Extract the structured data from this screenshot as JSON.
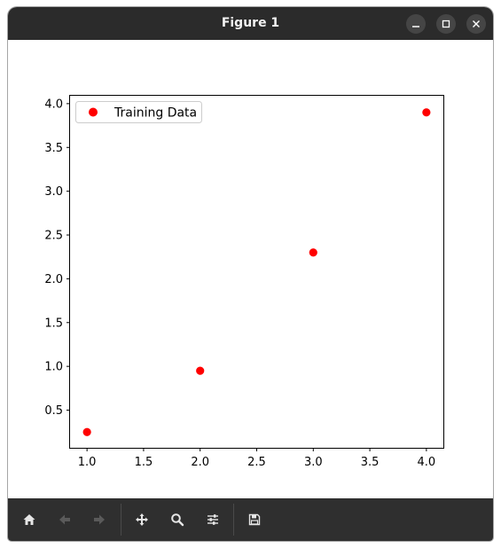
{
  "window": {
    "title": "Figure 1",
    "buttons": [
      "minimize-icon",
      "maximize-icon",
      "close-icon"
    ]
  },
  "toolbar": {
    "icons": [
      "home-icon",
      "back-arrow-icon",
      "forward-arrow-icon",
      "pan-icon",
      "zoom-icon",
      "configure-subplots-icon",
      "save-icon"
    ]
  },
  "colors": {
    "titlebar": "#2b2b2b",
    "toolbar": "#2f2f2f",
    "marker": "#ff0000"
  },
  "chart_data": {
    "type": "scatter",
    "title": "",
    "xlabel": "",
    "ylabel": "",
    "xlim": [
      0.85,
      4.15
    ],
    "ylim": [
      0.07,
      4.09
    ],
    "xticks": [
      1.0,
      1.5,
      2.0,
      2.5,
      3.0,
      3.5,
      4.0
    ],
    "xtick_labels": [
      "1.0",
      "1.5",
      "2.0",
      "2.5",
      "3.0",
      "3.5",
      "4.0"
    ],
    "yticks": [
      0.5,
      1.0,
      1.5,
      2.0,
      2.5,
      3.0,
      3.5,
      4.0
    ],
    "ytick_labels": [
      "0.5",
      "1.0",
      "1.5",
      "2.0",
      "2.5",
      "3.0",
      "3.5",
      "4.0"
    ],
    "grid": false,
    "legend_position": "upper-left",
    "series": [
      {
        "name": "Training Data",
        "color": "#ff0000",
        "marker": "circle",
        "x": [
          1.0,
          2.0,
          3.0,
          4.0
        ],
        "y": [
          0.25,
          0.95,
          2.3,
          3.9
        ]
      }
    ]
  }
}
